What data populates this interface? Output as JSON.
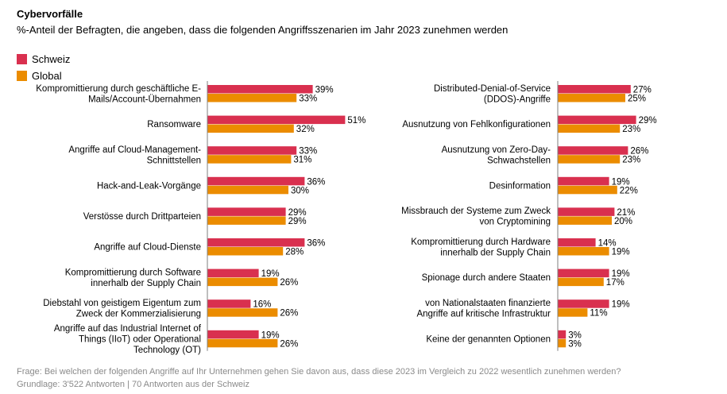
{
  "title": "Cybervorfälle",
  "subtitle": "%-Anteil der Befragten, die angeben, dass die folgenden Angriffsszenarien im Jahr 2023 zunehmen werden",
  "legend": [
    {
      "label": "Schweiz",
      "color": "#d9304f"
    },
    {
      "label": "Global",
      "color": "#eb8c00"
    }
  ],
  "footer": {
    "question": "Frage: Bei welchen der folgenden Angriffe auf Ihr Unternehmen gehen Sie davon aus, dass diese 2023 im Vergleich zu 2022 wesentlich zunehmen werden?",
    "basis": "Grundlage: 3'522 Antworten | 70 Antworten aus der Schweiz"
  },
  "chart_data": [
    {
      "type": "bar",
      "orientation": "horizontal",
      "categories": [
        [
          "Kompromittierung durch geschäftliche E-",
          "Mails/Account-Übernahmen"
        ],
        [
          "Ransomware"
        ],
        [
          "Angriffe auf Cloud-Management-",
          "Schnittstellen"
        ],
        [
          "Hack-and-Leak-Vorgänge"
        ],
        [
          "Verstösse durch Drittparteien"
        ],
        [
          "Angriffe auf Cloud-Dienste"
        ],
        [
          "Kompromittierung durch Software",
          "innerhalb der Supply Chain"
        ],
        [
          "Diebstahl von geistigem Eigentum zum",
          "Zweck der Kommerzialisierung"
        ],
        [
          "Angriffe auf das Industrial Internet of",
          "Things (IIoT) oder Operational",
          "Technology  (OT)"
        ]
      ],
      "series": [
        {
          "name": "Schweiz",
          "values": [
            39,
            51,
            33,
            36,
            29,
            36,
            19,
            16,
            19
          ]
        },
        {
          "name": "Global",
          "values": [
            33,
            32,
            31,
            30,
            29,
            28,
            26,
            26,
            26
          ]
        }
      ],
      "value_suffix": "%"
    },
    {
      "type": "bar",
      "orientation": "horizontal",
      "categories": [
        [
          "Distributed-Denial-of-Service",
          "(DDOS)-Angriffe"
        ],
        [
          "Ausnutzung von Fehlkonfigurationen"
        ],
        [
          "Ausnutzung von Zero-Day-",
          "Schwachstellen"
        ],
        [
          "Desinformation"
        ],
        [
          "Missbrauch der Systeme zum Zweck",
          "von Cryptomining"
        ],
        [
          "Kompromittierung durch Hardware",
          "innerhalb der Supply Chain"
        ],
        [
          "Spionage durch andere Staaten"
        ],
        [
          "von Nationalstaaten finanzierte",
          "Angriffe auf kritische Infrastruktur"
        ],
        [
          "Keine der genannten Optionen"
        ]
      ],
      "series": [
        {
          "name": "Schweiz",
          "values": [
            27,
            29,
            26,
            19,
            21,
            14,
            19,
            19,
            3
          ]
        },
        {
          "name": "Global",
          "values": [
            25,
            23,
            23,
            22,
            20,
            19,
            17,
            11,
            3
          ]
        }
      ],
      "value_suffix": "%"
    }
  ]
}
